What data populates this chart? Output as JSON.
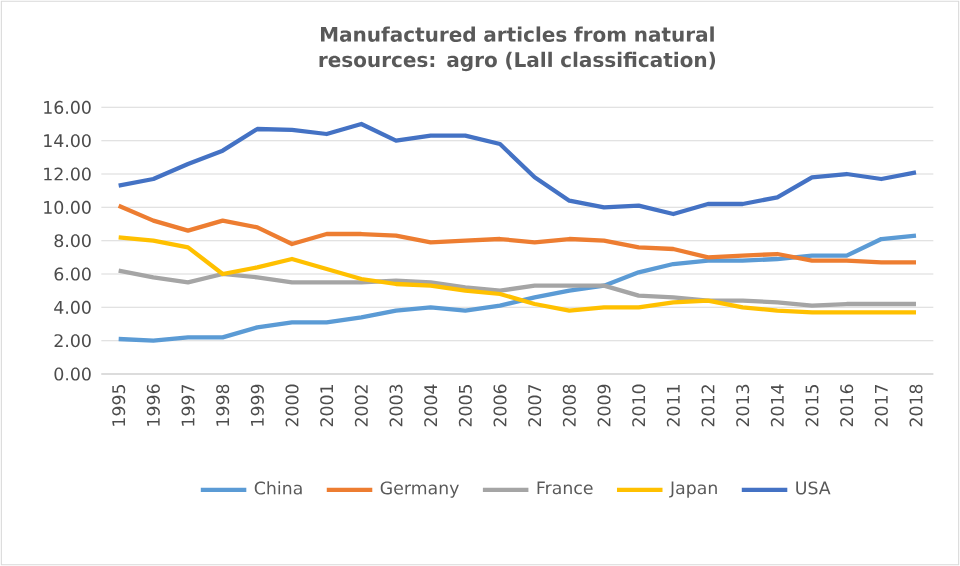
{
  "chart_data": {
    "type": "line",
    "title": "Manufactured articles from natural resources: agro (Lall classification)",
    "categories": [
      "1995",
      "1996",
      "1997",
      "1998",
      "1999",
      "2000",
      "2001",
      "2002",
      "2003",
      "2004",
      "2005",
      "2006",
      "2007",
      "2008",
      "2009",
      "2010",
      "2011",
      "2012",
      "2013",
      "2014",
      "2015",
      "2016",
      "2017",
      "2018"
    ],
    "series": [
      {
        "name": "China",
        "color": "#5b9bd5",
        "values": [
          2.1,
          2.0,
          2.2,
          2.2,
          2.8,
          3.1,
          3.1,
          3.4,
          3.8,
          4.0,
          3.8,
          4.1,
          4.6,
          5.0,
          5.3,
          6.1,
          6.6,
          6.8,
          6.8,
          6.9,
          7.1,
          7.1,
          8.1,
          8.3
        ]
      },
      {
        "name": "Germany",
        "color": "#ed7d31",
        "values": [
          10.1,
          9.2,
          8.6,
          9.2,
          8.8,
          7.8,
          8.4,
          8.4,
          8.3,
          7.9,
          8.0,
          8.1,
          7.9,
          8.1,
          8.0,
          7.6,
          7.5,
          7.0,
          7.1,
          7.2,
          6.8,
          6.8,
          6.7,
          6.7
        ]
      },
      {
        "name": "France",
        "color": "#a5a5a5",
        "values": [
          6.2,
          5.8,
          5.5,
          6.0,
          5.8,
          5.5,
          5.5,
          5.5,
          5.6,
          5.5,
          5.2,
          5.0,
          5.3,
          5.3,
          5.3,
          4.7,
          4.6,
          4.4,
          4.4,
          4.3,
          4.1,
          4.2,
          4.2,
          4.2
        ]
      },
      {
        "name": "Japan",
        "color": "#ffc000",
        "values": [
          8.2,
          8.0,
          7.6,
          6.0,
          6.4,
          6.9,
          6.3,
          5.7,
          5.4,
          5.3,
          5.0,
          4.8,
          4.2,
          3.8,
          4.0,
          4.0,
          4.3,
          4.4,
          4.0,
          3.8,
          3.7,
          3.7,
          3.7,
          3.7
        ]
      },
      {
        "name": "USA",
        "color": "#4472c4",
        "values": [
          11.3,
          11.7,
          12.6,
          13.4,
          14.7,
          14.65,
          14.4,
          15.0,
          14.0,
          14.3,
          14.3,
          13.8,
          11.8,
          10.4,
          10.0,
          10.1,
          9.6,
          10.2,
          10.2,
          10.6,
          11.8,
          12.0,
          11.7,
          12.1
        ]
      }
    ],
    "ylim": [
      0,
      16
    ],
    "yticks": [
      {
        "value": 0,
        "label": "0.00"
      },
      {
        "value": 2,
        "label": "2.00"
      },
      {
        "value": 4,
        "label": "4.00"
      },
      {
        "value": 6,
        "label": "6.00"
      },
      {
        "value": 8,
        "label": "8.00"
      },
      {
        "value": 10,
        "label": "10.00"
      },
      {
        "value": 12,
        "label": "12.00"
      },
      {
        "value": 14,
        "label": "14.00"
      },
      {
        "value": 16,
        "label": "16.00"
      }
    ],
    "grid": "y",
    "legend": "bottom",
    "marker": "none",
    "line_style": "solid"
  }
}
